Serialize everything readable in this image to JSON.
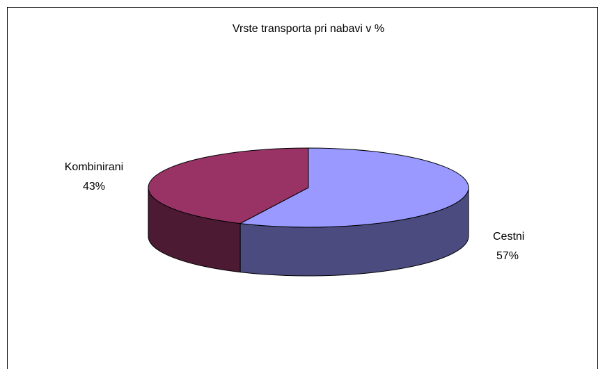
{
  "chart_data": {
    "type": "pie",
    "title": "Vrste transporta pri nabavi v %",
    "categories": [
      "Cestni",
      "Kombinirani"
    ],
    "values": [
      57,
      43
    ],
    "value_labels": [
      "57%",
      "43%"
    ],
    "colors": [
      "#9999ff",
      "#993366"
    ],
    "side_colors": [
      "#4b4b80",
      "#4d1a33"
    ]
  }
}
